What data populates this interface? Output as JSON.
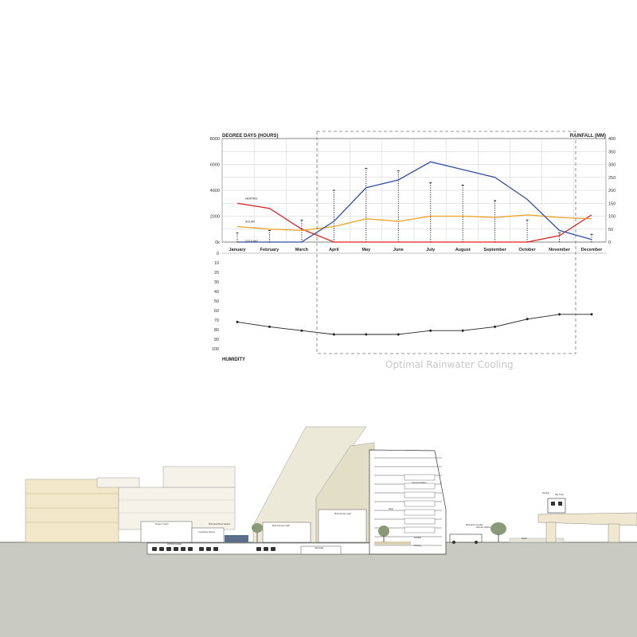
{
  "chart_data": [
    {
      "type": "line",
      "title": "",
      "ylabel_left": "DEGREE DAYS (HOURS)",
      "ylabel_right": "RAINFALL (MM)",
      "categories": [
        "January",
        "February",
        "March",
        "April",
        "May",
        "June",
        "July",
        "August",
        "September",
        "October",
        "November",
        "December"
      ],
      "ylim_left": [
        0,
        8000
      ],
      "yticks_left": [
        "0k",
        "2000",
        "4000",
        "6000",
        "8000"
      ],
      "ylim_right": [
        0,
        400
      ],
      "yticks_right": [
        "0",
        "50",
        "100",
        "150",
        "200",
        "250",
        "300",
        "350",
        "400"
      ],
      "grid": true,
      "series": [
        {
          "name": "HEATING",
          "color": "#e02020",
          "values": [
            3000,
            2600,
            1000,
            0,
            0,
            0,
            0,
            0,
            0,
            0,
            500,
            2100
          ]
        },
        {
          "name": "SOLAR",
          "color": "#f0a020",
          "values": [
            1200,
            1000,
            900,
            1200,
            1800,
            1600,
            2000,
            2000,
            1900,
            2100,
            1900,
            1800
          ]
        },
        {
          "name": "COOLING",
          "color": "#3050a0",
          "values": [
            0,
            0,
            0,
            1600,
            4200,
            4800,
            6200,
            5600,
            5000,
            3300,
            900,
            200
          ]
        }
      ],
      "rainfall": {
        "values": [
          35,
          45,
          85,
          200,
          285,
          275,
          230,
          220,
          160,
          85,
          35,
          30
        ]
      }
    },
    {
      "type": "line",
      "ylabel": "HUMIDITY",
      "ylim": [
        0,
        100
      ],
      "yticks": [
        "0",
        "10",
        "20",
        "30",
        "40",
        "50",
        "60",
        "70",
        "80",
        "90",
        "100"
      ],
      "inverted": true,
      "categories": [
        "January",
        "February",
        "March",
        "April",
        "May",
        "June",
        "July",
        "August",
        "September",
        "October",
        "November",
        "December"
      ],
      "series": [
        {
          "name": "",
          "color": "#222222",
          "values": [
            72,
            77,
            81,
            85,
            85,
            85,
            81,
            81,
            77,
            69,
            64,
            64
          ]
        }
      ]
    }
  ],
  "annotation": {
    "label": "Optimal Rainwater Cooling"
  },
  "section": {
    "labels": [
      "Tenant / Garth",
      "Coworking Rooms",
      "Parking Garage",
      "Multi-level Roof Garden",
      "Multi-Function Hall",
      "Accommodation",
      "Shop",
      "Multi-function Hall",
      "Parking",
      "Rooftop",
      "Skybridge",
      "Rooftop",
      "Restaurant Garden",
      "Retail",
      "Sky Train",
      "Skytrain Station"
    ]
  }
}
